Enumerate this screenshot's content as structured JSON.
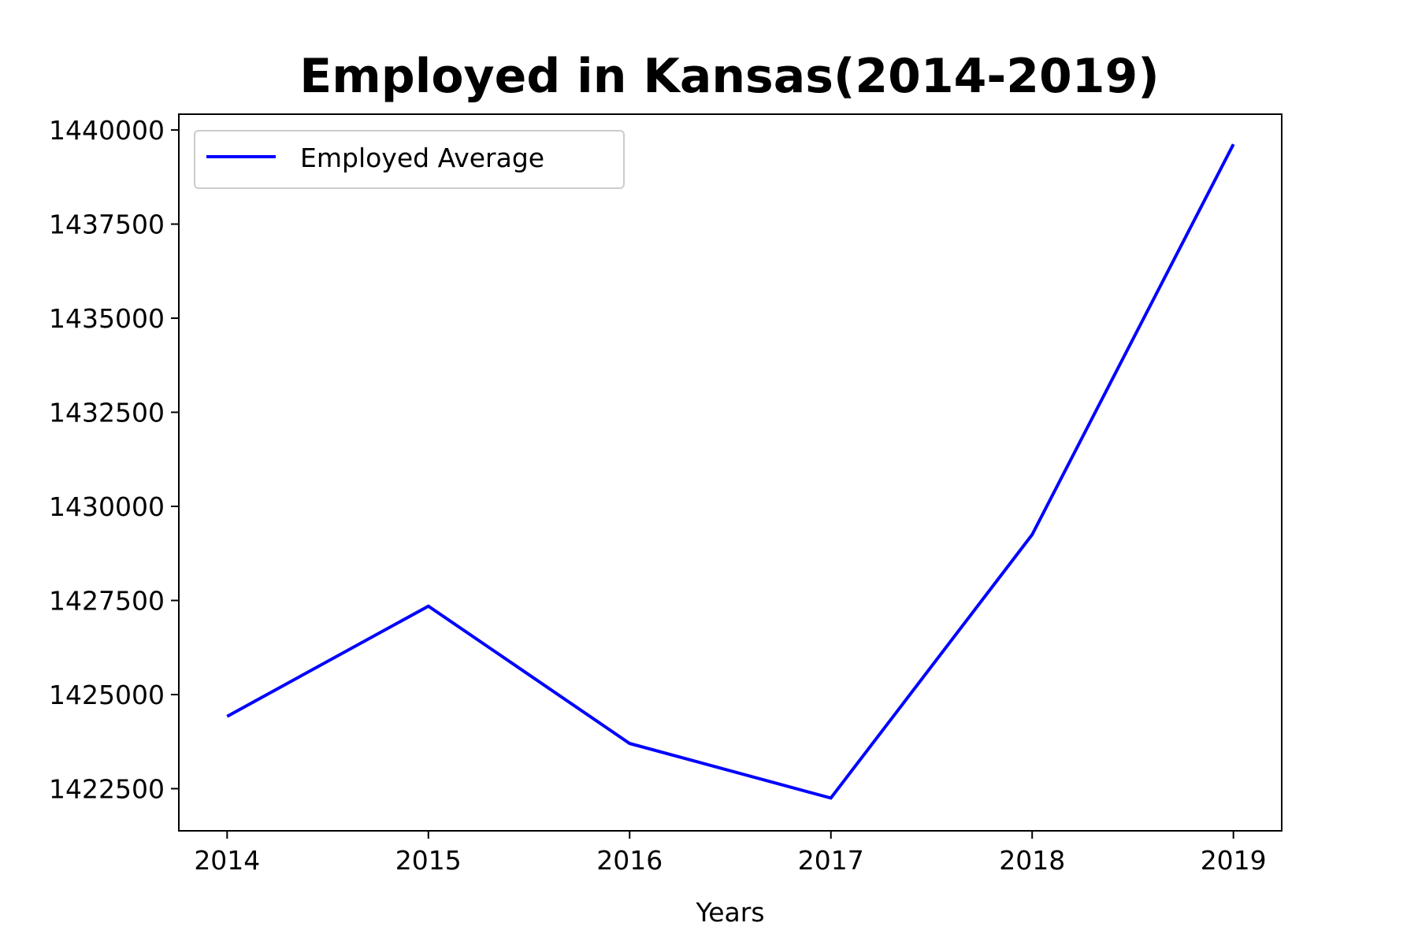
{
  "chart_data": {
    "type": "line",
    "title": "Employed in Kansas(2014-2019)",
    "xlabel": "Years",
    "ylabel": "",
    "x": [
      2014,
      2015,
      2016,
      2017,
      2018,
      2019
    ],
    "x_tick_labels": [
      "2014",
      "2015",
      "2016",
      "2017",
      "2018",
      "2019"
    ],
    "y_ticks": [
      1422500,
      1425000,
      1427500,
      1430000,
      1432500,
      1435000,
      1437500,
      1440000
    ],
    "y_tick_labels": [
      "1422500",
      "1425000",
      "1427500",
      "1430000",
      "1432500",
      "1435000",
      "1437500",
      "1440000"
    ],
    "xlim": [
      2013.76,
      2019.24
    ],
    "ylim": [
      1421380,
      1440420
    ],
    "series": [
      {
        "name": "Employed Average",
        "color": "#0000ff",
        "values": [
          1424420,
          1427350,
          1423700,
          1422250,
          1429250,
          1439620
        ]
      }
    ],
    "legend": {
      "position": "top-left",
      "labels": [
        "Employed Average"
      ]
    },
    "grid": false
  }
}
